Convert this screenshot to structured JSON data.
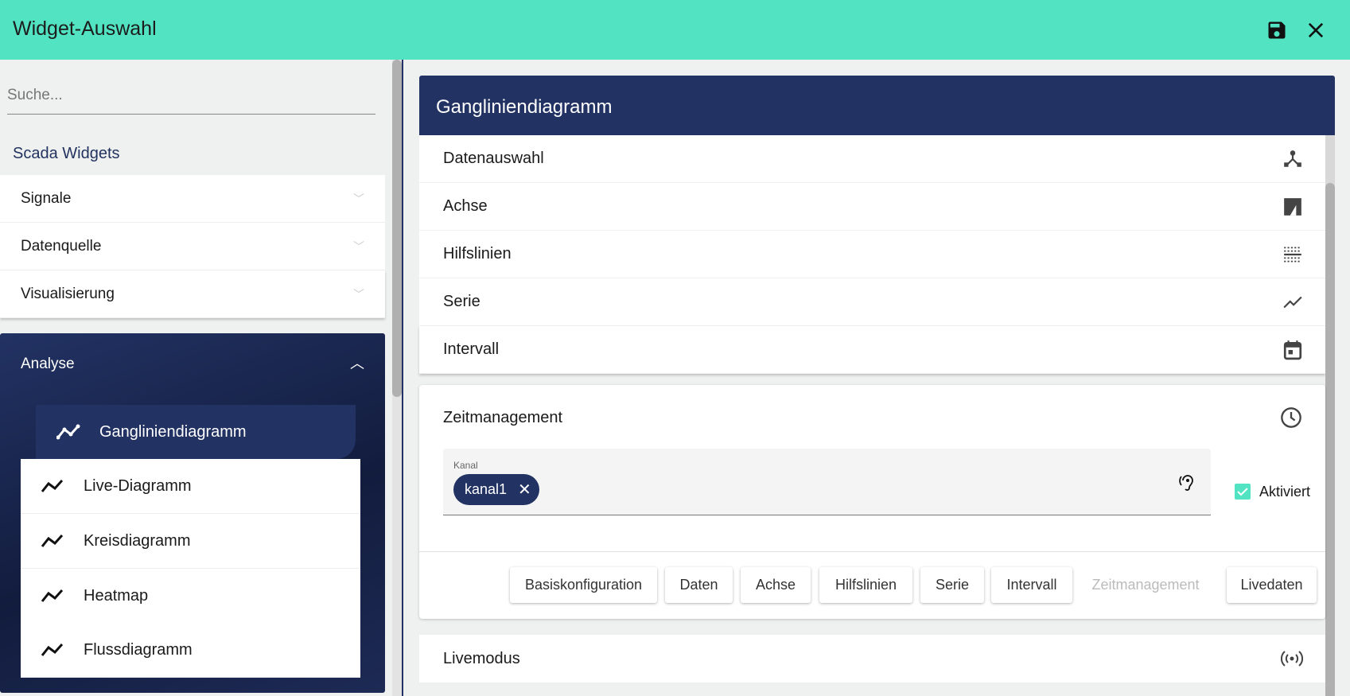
{
  "header": {
    "title": "Widget-Auswahl",
    "save_icon": "save-icon",
    "close_icon": "close-icon"
  },
  "colors": {
    "accent": "#51e3c2",
    "primary": "#223263"
  },
  "sidebar": {
    "search_placeholder": "Suche...",
    "section": "Scada Widgets",
    "groups": [
      {
        "label": "Signale"
      },
      {
        "label": "Datenquelle"
      },
      {
        "label": "Visualisierung"
      }
    ],
    "analyse": {
      "label": "Analyse",
      "items": [
        {
          "label": "Gangliniendiagramm",
          "active": true
        },
        {
          "label": "Live-Diagramm"
        },
        {
          "label": "Kreisdiagramm"
        },
        {
          "label": "Heatmap"
        },
        {
          "label": "Flussdiagramm"
        }
      ]
    }
  },
  "main": {
    "title": "Gangliniendiagramm",
    "sections": [
      {
        "label": "Datenauswahl",
        "icon": "hub-icon"
      },
      {
        "label": "Achse",
        "icon": "axis-icon"
      },
      {
        "label": "Hilfslinien",
        "icon": "gridlines-icon"
      },
      {
        "label": "Serie",
        "icon": "line-chart-icon"
      },
      {
        "label": "Intervall",
        "icon": "calendar-icon"
      }
    ],
    "zeit": {
      "title": "Zeitmanagement",
      "field_label": "Kanal",
      "chip": "kanal1",
      "checkbox_label": "Aktiviert",
      "checked": true,
      "buttons": [
        "Basiskonfiguration",
        "Daten",
        "Achse",
        "Hilfslinien",
        "Serie",
        "Intervall",
        "Zeitmanagement",
        "Livedaten"
      ]
    },
    "live": {
      "title": "Livemodus"
    }
  }
}
